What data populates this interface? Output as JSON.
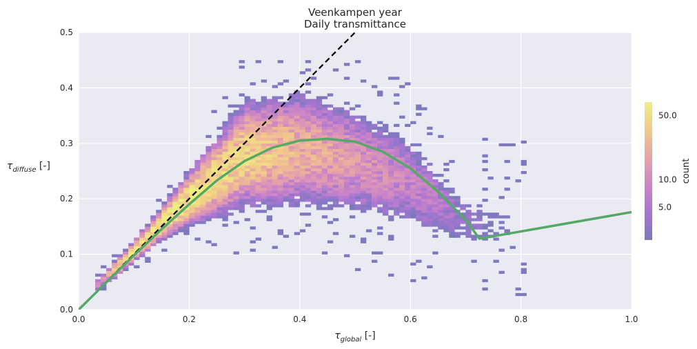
{
  "chart_data": {
    "type": "heatmap",
    "title": "Veenkampen year",
    "subtitle": "Daily transmittance",
    "xlabel": "τ",
    "xlabel_sub": "global",
    "xlabel_suffix": " [-]",
    "ylabel": "τ",
    "ylabel_sub": "diffuse",
    "ylabel_suffix": " [-]",
    "xlim": [
      0,
      1.0
    ],
    "ylim": [
      0,
      0.5
    ],
    "xticks": [
      0.0,
      0.2,
      0.4,
      0.6,
      0.8,
      1.0
    ],
    "xtick_labels": [
      "0.0",
      "0.2",
      "0.4",
      "0.6",
      "0.8",
      "1.0"
    ],
    "yticks": [
      0.0,
      0.1,
      0.2,
      0.3,
      0.4,
      0.5
    ],
    "ytick_labels": [
      "0.0",
      "0.1",
      "0.2",
      "0.3",
      "0.4",
      "0.5"
    ],
    "grid": true,
    "bin_width": [
      0.01,
      0.005
    ],
    "density_model": {
      "x": [
        0.03,
        0.1,
        0.15,
        0.2,
        0.3,
        0.4,
        0.5,
        0.6,
        0.7,
        0.78
      ],
      "center": [
        0.04,
        0.105,
        0.155,
        0.2,
        0.28,
        0.29,
        0.27,
        0.23,
        0.16,
        0.15
      ],
      "spread": [
        0.006,
        0.008,
        0.012,
        0.02,
        0.04,
        0.045,
        0.045,
        0.04,
        0.03,
        0.04
      ],
      "peak_count": [
        6,
        55,
        65,
        60,
        45,
        25,
        14,
        9,
        3,
        1.5
      ]
    },
    "colorbar": {
      "label": "count",
      "scale": "log",
      "range": [
        2.2,
        70
      ],
      "ticks": [
        5,
        10,
        50
      ],
      "tick_labels": [
        "5.0",
        "10.0",
        "50.0"
      ],
      "colors": [
        "#7b79be",
        "#a775d2",
        "#cd86c6",
        "#e6a3a8",
        "#f2c98a",
        "#eeee80"
      ]
    },
    "series": [
      {
        "name": "1:1 line",
        "style": "dashed",
        "color": "#000000",
        "x": [
          0,
          0.5
        ],
        "y": [
          0,
          0.5
        ]
      },
      {
        "name": "diffuse model",
        "style": "solid",
        "color": "#55a868",
        "x": [
          0,
          0.1,
          0.15,
          0.2,
          0.25,
          0.3,
          0.35,
          0.4,
          0.45,
          0.5,
          0.55,
          0.6,
          0.65,
          0.7,
          0.725,
          1.0
        ],
        "y": [
          0,
          0.098,
          0.145,
          0.19,
          0.233,
          0.268,
          0.292,
          0.305,
          0.308,
          0.303,
          0.285,
          0.255,
          0.213,
          0.162,
          0.128,
          0.176
        ]
      }
    ]
  }
}
